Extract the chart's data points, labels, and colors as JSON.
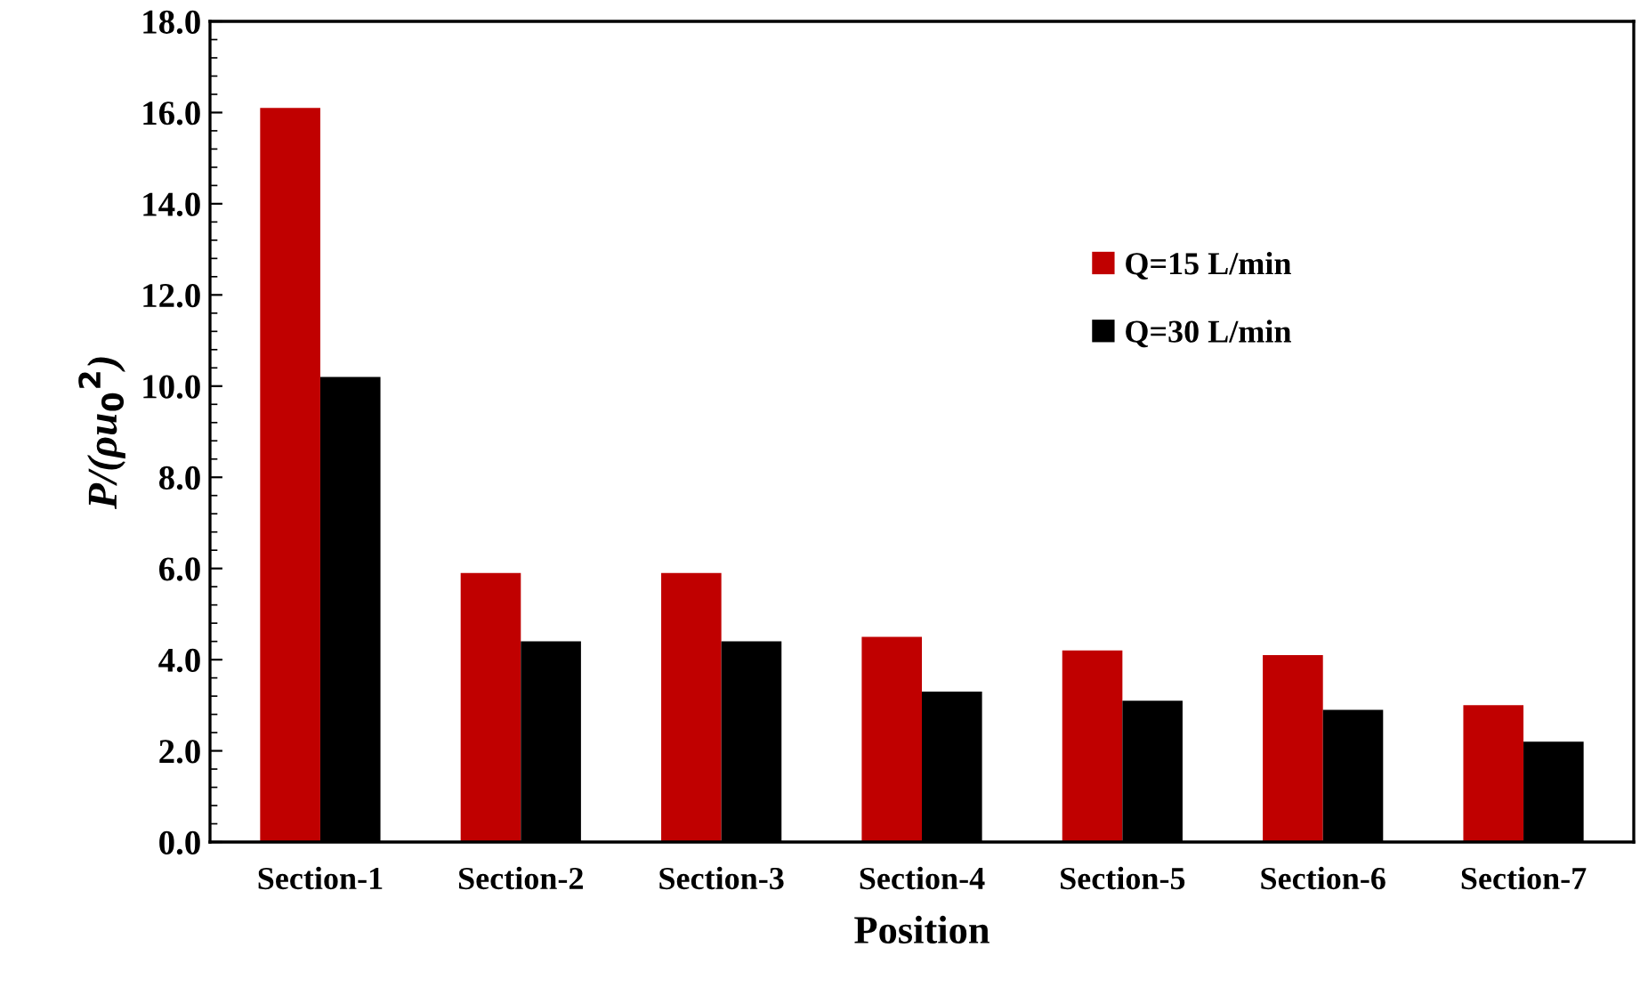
{
  "chart_data": {
    "type": "bar",
    "xlabel": "Position",
    "ylabel": "P/(ρu$_{0}$$^{2}$)",
    "categories": [
      "Section-1",
      "Section-2",
      "Section-3",
      "Section-4",
      "Section-5",
      "Section-6",
      "Section-7"
    ],
    "series": [
      {
        "name": "Q=15 L/min",
        "color": "#c00000",
        "values": [
          16.1,
          5.9,
          5.9,
          4.5,
          4.2,
          4.1,
          3.0
        ]
      },
      {
        "name": "Q=30 L/min",
        "color": "#000000",
        "values": [
          10.2,
          4.4,
          4.4,
          3.3,
          3.1,
          2.9,
          2.2
        ]
      }
    ],
    "ylim": [
      0,
      18
    ],
    "yticks": [
      {
        "value": 0,
        "label": "0.0"
      },
      {
        "value": 2,
        "label": "2.0"
      },
      {
        "value": 4,
        "label": "4.0"
      },
      {
        "value": 6,
        "label": "6.0"
      },
      {
        "value": 8,
        "label": "8.0"
      },
      {
        "value": 10,
        "label": "10.0"
      },
      {
        "value": 12,
        "label": "12.0"
      },
      {
        "value": 14,
        "label": "14.0"
      },
      {
        "value": 16,
        "label": "16.0"
      },
      {
        "value": 18,
        "label": "18.0"
      }
    ],
    "grid": false,
    "legend": "right"
  }
}
